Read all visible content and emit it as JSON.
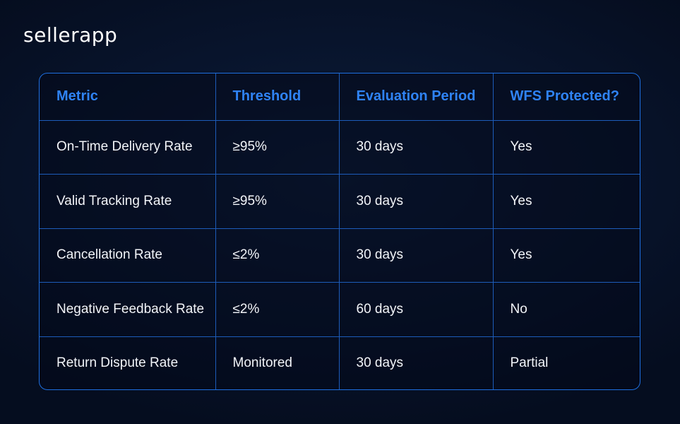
{
  "brand": {
    "logo_text": "sellerapp"
  },
  "table": {
    "headers": [
      "Metric",
      "Threshold",
      "Evaluation Period",
      "WFS Protected?"
    ],
    "rows": [
      [
        "On-Time Delivery Rate",
        "≥95%",
        "30 days",
        "Yes"
      ],
      [
        "Valid Tracking Rate",
        "≥95%",
        "30 days",
        "Yes"
      ],
      [
        "Cancellation Rate",
        "≤2%",
        "30 days",
        "Yes"
      ],
      [
        "Negative Feedback Rate",
        "≤2%",
        "60 days",
        "No"
      ],
      [
        "Return Dispute Rate",
        "Monitored",
        "30 days",
        "Partial"
      ]
    ]
  },
  "colors": {
    "background": "#08142c",
    "accent_blue": "#2f83f5",
    "border_blue": "#1e6fe0",
    "text": "#f2f4f8"
  }
}
